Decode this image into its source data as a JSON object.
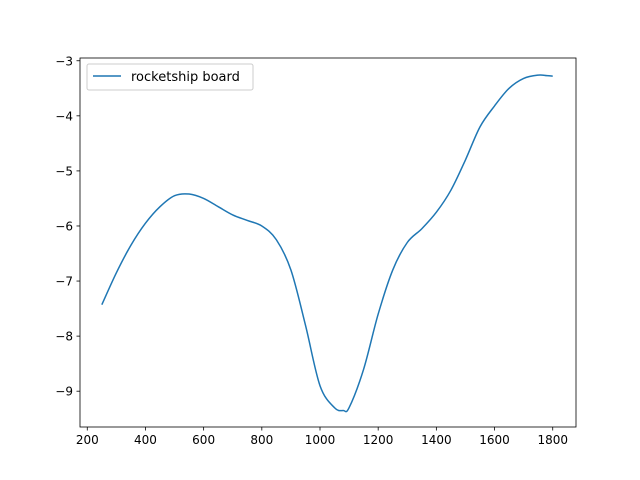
{
  "chart_data": {
    "type": "line",
    "title": "",
    "xlabel": "",
    "ylabel": "",
    "xlim": [
      175,
      1880
    ],
    "ylim": [
      -9.65,
      -2.95
    ],
    "xticks": [
      200,
      400,
      600,
      800,
      1000,
      1200,
      1400,
      1600,
      1800
    ],
    "yticks": [
      -9,
      -8,
      -7,
      -6,
      -5,
      -4,
      -3
    ],
    "xtick_labels": [
      "200",
      "400",
      "600",
      "800",
      "1000",
      "1200",
      "1400",
      "1600",
      "1800"
    ],
    "ytick_labels": [
      "−9",
      "−8",
      "−7",
      "−6",
      "−5",
      "−4",
      "−3"
    ],
    "grid": false,
    "legend": {
      "position": "top-left"
    },
    "series": [
      {
        "name": "rocketship board",
        "color": "#1f77b4",
        "x": [
          250,
          300,
          350,
          400,
          450,
          500,
          550,
          600,
          650,
          700,
          750,
          800,
          850,
          900,
          950,
          1000,
          1050,
          1080,
          1100,
          1150,
          1200,
          1250,
          1300,
          1350,
          1400,
          1450,
          1500,
          1550,
          1600,
          1650,
          1700,
          1750,
          1780,
          1800
        ],
        "y": [
          -7.43,
          -6.85,
          -6.35,
          -5.95,
          -5.65,
          -5.45,
          -5.42,
          -5.5,
          -5.65,
          -5.8,
          -5.9,
          -6.0,
          -6.25,
          -6.8,
          -7.8,
          -8.9,
          -9.3,
          -9.35,
          -9.3,
          -8.6,
          -7.6,
          -6.8,
          -6.3,
          -6.05,
          -5.75,
          -5.35,
          -4.8,
          -4.2,
          -3.82,
          -3.5,
          -3.32,
          -3.26,
          -3.27,
          -3.28
        ]
      }
    ]
  }
}
